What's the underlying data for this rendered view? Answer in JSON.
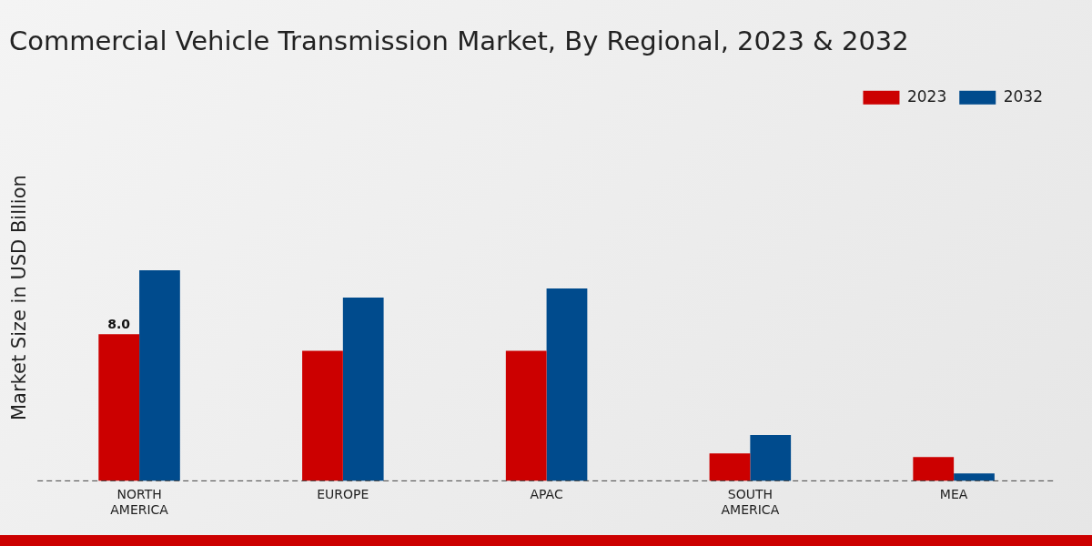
{
  "chart_data": {
    "type": "bar",
    "title": "Commercial Vehicle Transmission Market, By Regional, 2023 & 2032",
    "y_label": "Market Size in USD Billion",
    "categories": [
      "NORTH AMERICA",
      "EUROPE",
      "APAC",
      "SOUTH AMERICA",
      "MEA"
    ],
    "series": [
      {
        "name": "2023",
        "color": "#cc0000",
        "values": [
          8.0,
          7.1,
          7.1,
          1.5,
          1.3
        ]
      },
      {
        "name": "2032",
        "color": "#004b8d",
        "values": [
          11.5,
          10.0,
          10.5,
          2.5,
          0.4
        ]
      }
    ],
    "annotations": [
      {
        "text": "8.0",
        "category": "NORTH AMERICA",
        "series": "2023"
      }
    ],
    "ylim": [
      0,
      20
    ],
    "grid": false,
    "legend": "top right",
    "tick_labels": "x"
  }
}
